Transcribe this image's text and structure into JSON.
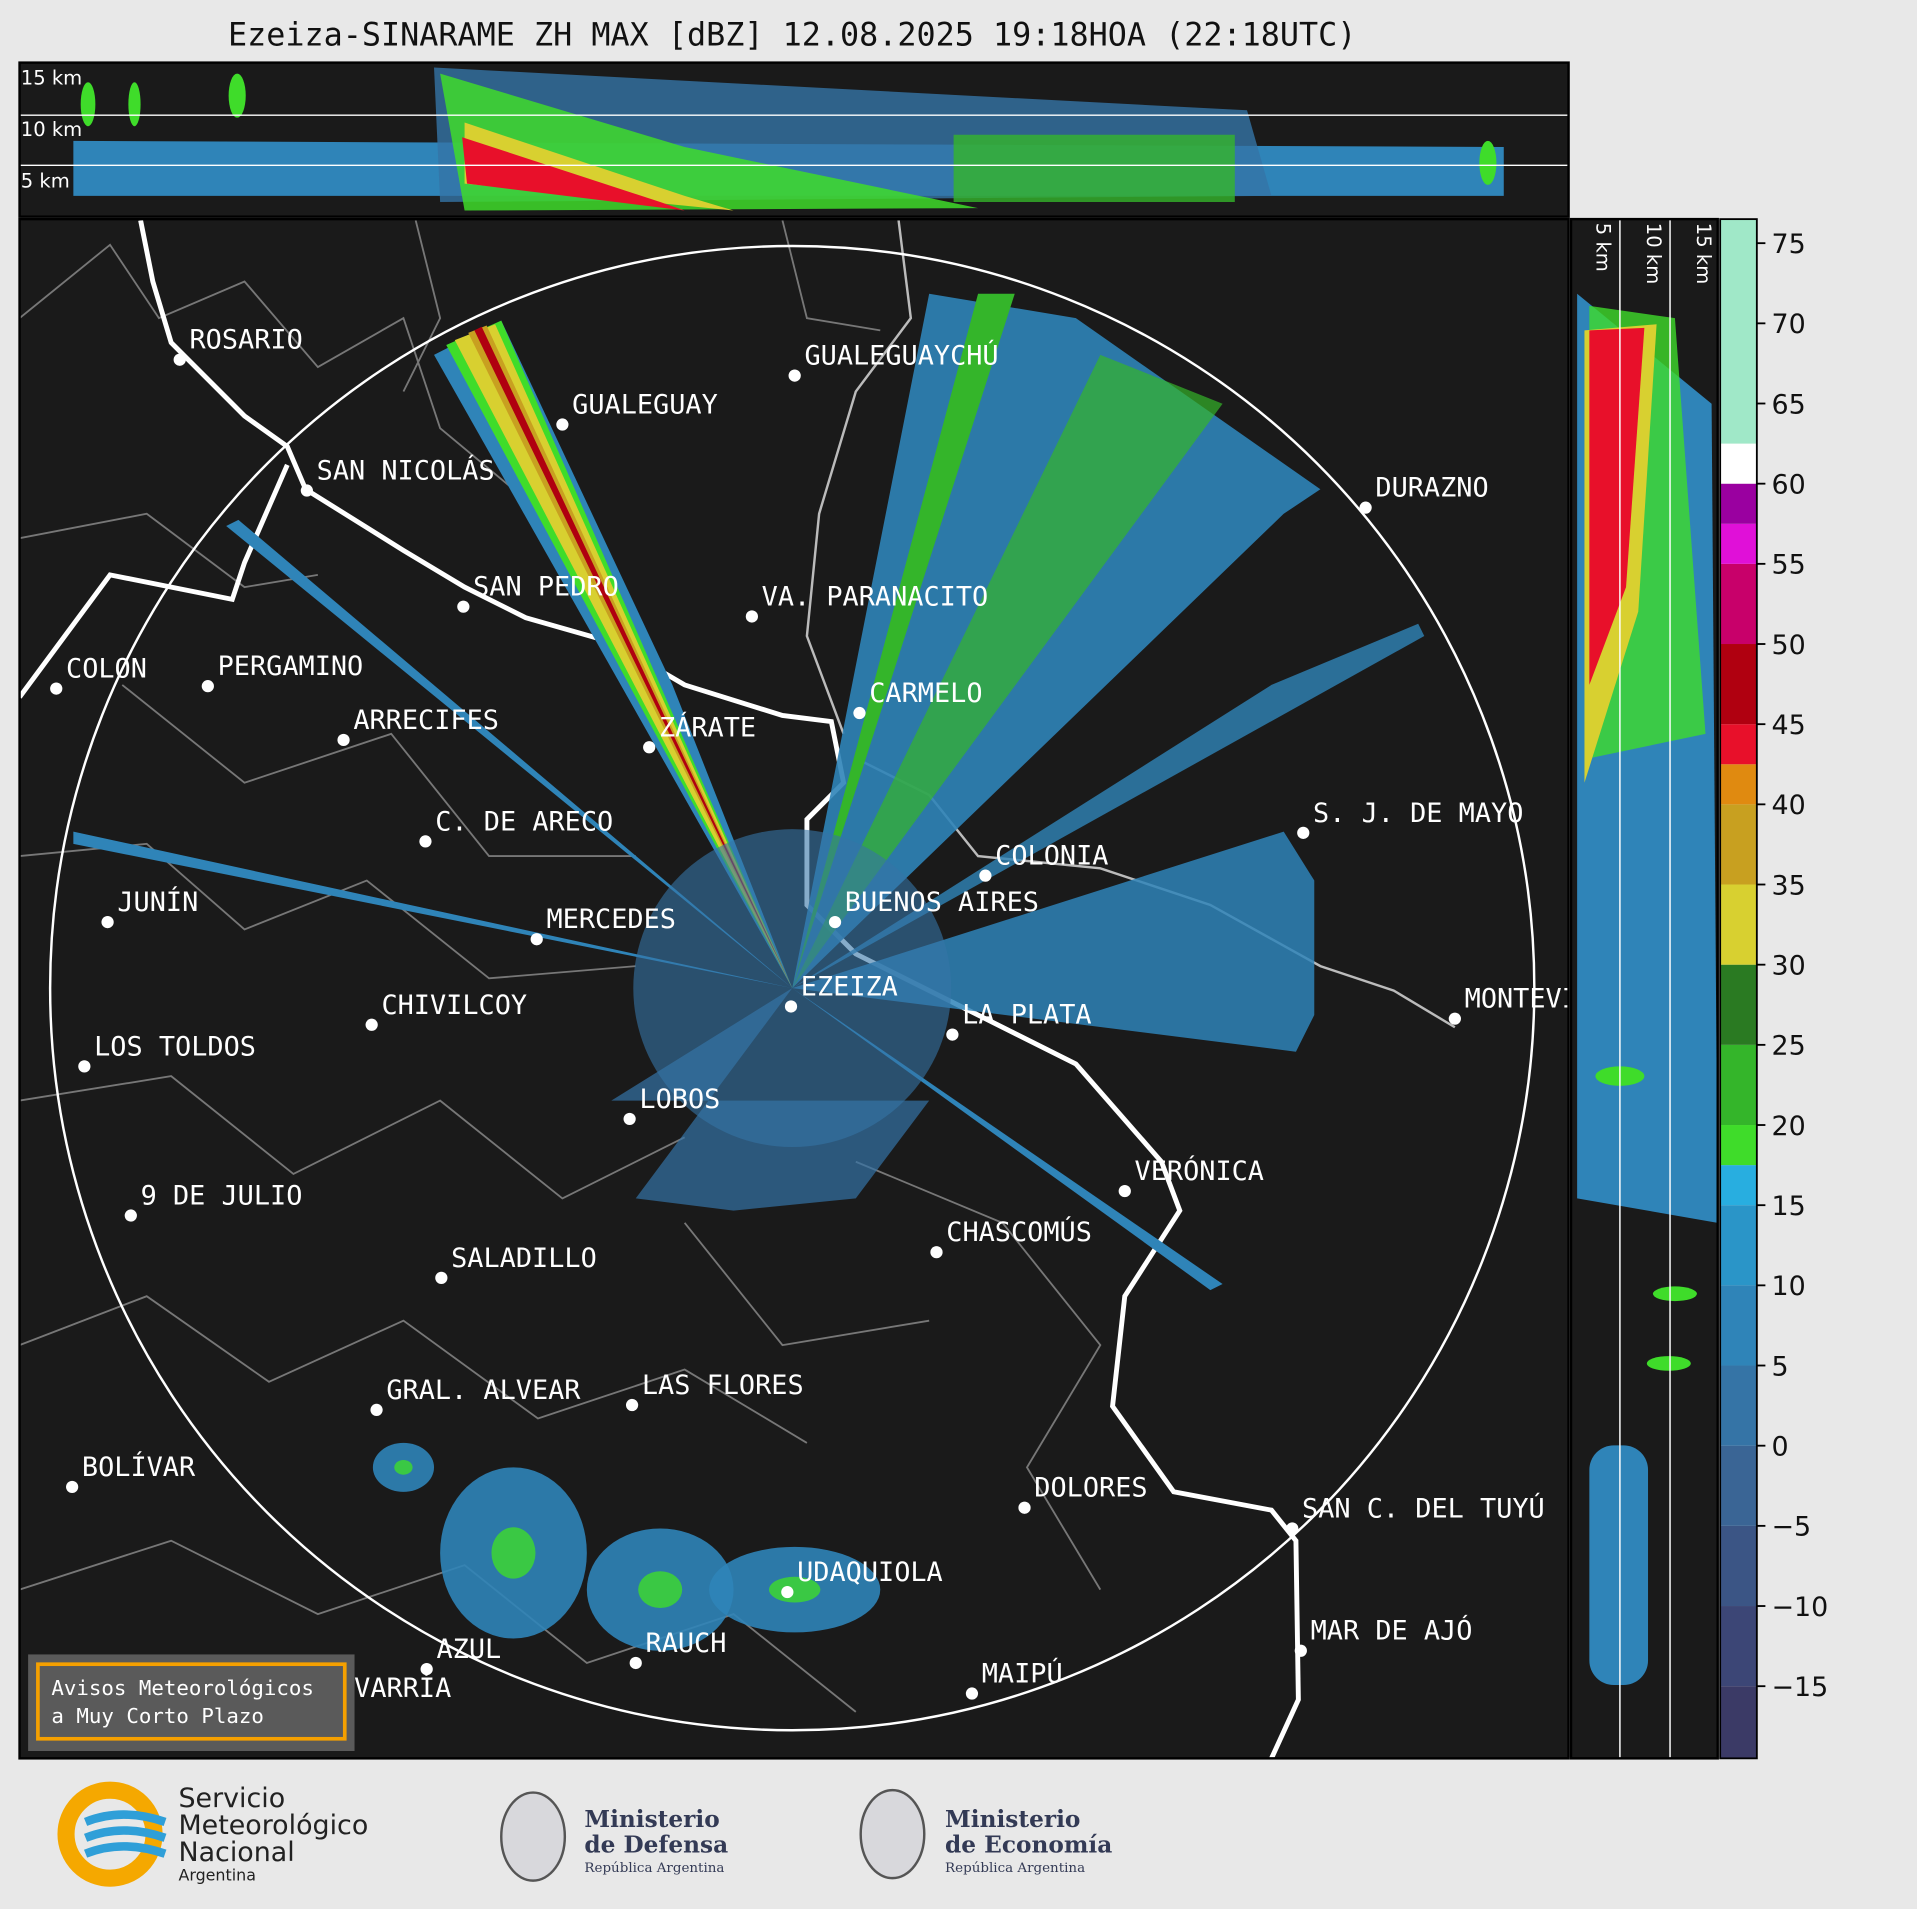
{
  "title": "Ezeiza-SINARAME ZH MAX [dBZ] 12.08.2025 19:18HOA (22:18UTC)",
  "top_panel": {
    "height_labels": [
      "15 km",
      "10 km",
      "5 km"
    ]
  },
  "side_panel": {
    "height_labels": [
      "5 km",
      "10 km",
      "15 km"
    ]
  },
  "cities": [
    "ROSARIO",
    "GUALEGUAYCHÚ",
    "GUALEGUAY",
    "SAN NICOLÁS",
    "DURAZNO",
    "SAN PEDRO",
    "VA. PARANACITO",
    "COLON",
    "PERGAMINO",
    "CARMELO",
    "ARRECIFES",
    "ZÁRATE",
    "C. DE ARECO",
    "S. J. DE MAYO",
    "COLONIA",
    "BUENOS AIRES",
    "JUNÍN",
    "MERCEDES",
    "EZEIZA",
    "MONTEVIDEO",
    "LA PLATA",
    "CHIVILCOY",
    "LOS TOLDOS",
    "LOBOS",
    "VERÓNICA",
    "9 DE JULIO",
    "CHASCOMÚS",
    "SALADILLO",
    "GRAL. ALVEAR",
    "LAS FLORES",
    "BOLÍVAR",
    "DOLORES",
    "SAN C. DEL TUYÚ",
    "UDAQUIOLA",
    "MAR DE AJÓ",
    "AZUL",
    "RAUCH",
    "OLAVARRÍA",
    "MAIPÚ"
  ],
  "warning_box": {
    "lines": [
      "Avisos Meteorológicos",
      "a Muy Corto Plazo"
    ]
  },
  "colorbar": {
    "lim": [
      -19.5,
      76.5
    ],
    "ticks": [
      {
        "value": -15,
        "label": "−15"
      },
      {
        "value": -10,
        "label": "−10"
      },
      {
        "value": -5,
        "label": "−5"
      },
      0,
      5,
      10,
      15,
      20,
      25,
      30,
      35,
      40,
      45,
      50,
      55,
      60,
      65,
      70,
      75
    ],
    "bands": [
      {
        "from": -19.5,
        "to": -15,
        "color": "#3b3a66"
      },
      {
        "from": -15,
        "to": -10,
        "color": "#3c4676"
      },
      {
        "from": -10,
        "to": -5,
        "color": "#3b5585"
      },
      {
        "from": -5,
        "to": 0,
        "color": "#3a6595"
      },
      {
        "from": 0,
        "to": 5,
        "color": "#3574a6"
      },
      {
        "from": 5,
        "to": 10,
        "color": "#2f84b8"
      },
      {
        "from": 10,
        "to": 15,
        "color": "#2a95c8"
      },
      {
        "from": 15,
        "to": 17.5,
        "color": "#28aee0"
      },
      {
        "from": 17.5,
        "to": 20,
        "color": "#3fdc2a"
      },
      {
        "from": 20,
        "to": 25,
        "color": "#34b52a"
      },
      {
        "from": 25,
        "to": 30,
        "color": "#2a7a22"
      },
      {
        "from": 30,
        "to": 35,
        "color": "#d8d030"
      },
      {
        "from": 35,
        "to": 40,
        "color": "#c8a020"
      },
      {
        "from": 40,
        "to": 42.5,
        "color": "#e08a10"
      },
      {
        "from": 42.5,
        "to": 45,
        "color": "#e8102a"
      },
      {
        "from": 45,
        "to": 50,
        "color": "#b00010"
      },
      {
        "from": 50,
        "to": 55,
        "color": "#c8006a"
      },
      {
        "from": 55,
        "to": 57.5,
        "color": "#e010d8"
      },
      {
        "from": 57.5,
        "to": 60,
        "color": "#9a00a0"
      },
      {
        "from": 60,
        "to": 62.5,
        "color": "#ffffff"
      },
      {
        "from": 62.5,
        "to": 76.5,
        "color": "#a0e8c8"
      }
    ]
  },
  "logos": [
    {
      "lines": [
        "Servicio",
        "Meteorológico",
        "Nacional",
        "Argentina"
      ]
    },
    {
      "lines": [
        "Ministerio",
        "de Defensa",
        "República Argentina"
      ]
    },
    {
      "lines": [
        "Ministerio",
        "de Economía",
        "República Argentina"
      ]
    }
  ]
}
